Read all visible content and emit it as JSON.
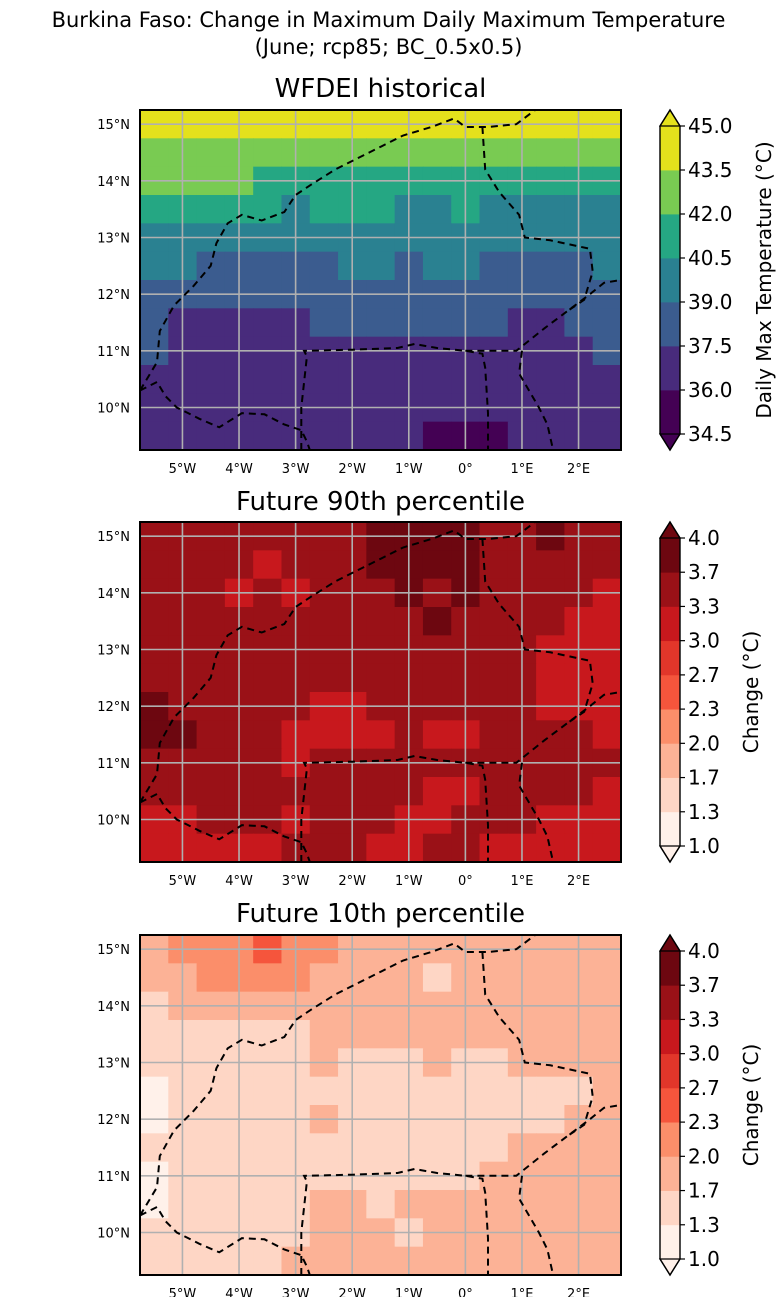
{
  "figure": {
    "title_line1": "Burkina Faso: Change in Maximum Daily Maximum Temperature",
    "title_line2": "(June; rcp85; BC_0.5x0.5)"
  },
  "chart_data": [
    {
      "type": "heatmap",
      "title": "WFDEI historical",
      "x_ticks": [
        "5°W",
        "4°W",
        "3°W",
        "2°W",
        "1°W",
        "0°",
        "1°E",
        "2°E"
      ],
      "y_ticks": [
        "15°N",
        "14°N",
        "13°N",
        "12°N",
        "11°N",
        "10°N"
      ],
      "xlim": [
        -5.75,
        2.75
      ],
      "ylim": [
        9.25,
        15.25
      ],
      "grid": true,
      "colorbar": {
        "label": "Daily Max Temperature (°C)",
        "ticks": [
          "34.5",
          "36.0",
          "37.5",
          "39.0",
          "40.5",
          "42.0",
          "43.5",
          "45.0"
        ],
        "colors": [
          "#440154",
          "#46327e",
          "#365c8d",
          "#277f8e",
          "#1fa187",
          "#4ac16d",
          "#a0da39",
          "#fde725"
        ],
        "colors_display": [
          "#440154",
          "#482b7c",
          "#3b5c8f",
          "#2a8191",
          "#25a783",
          "#79cb52",
          "#e4e11c"
        ]
      },
      "rows_lat": [
        15.0,
        14.5,
        14.0,
        13.5,
        13.0,
        12.5,
        12.0,
        11.5,
        11.0,
        10.5,
        10.0,
        9.5
      ],
      "cols_lon": [
        -5.5,
        -5.0,
        -4.5,
        -4.0,
        -3.5,
        -3.0,
        -2.5,
        -2.0,
        -1.5,
        -1.0,
        -0.5,
        0.0,
        0.5,
        1.0,
        1.5,
        2.0,
        2.5
      ],
      "values": [
        [
          44.0,
          44.0,
          44.2,
          44.0,
          44.2,
          44.4,
          44.5,
          44.5,
          44.5,
          44.2,
          44.8,
          44.8,
          44.2,
          44.0,
          44.0,
          43.6,
          43.6
        ],
        [
          43.0,
          43.0,
          42.8,
          43.0,
          42.8,
          42.8,
          43.0,
          43.2,
          43.2,
          43.0,
          43.0,
          42.8,
          42.6,
          42.8,
          42.6,
          42.6,
          42.6
        ],
        [
          42.8,
          42.6,
          42.2,
          42.0,
          41.8,
          41.6,
          41.6,
          41.8,
          41.6,
          41.4,
          41.6,
          41.4,
          41.2,
          41.4,
          41.4,
          41.2,
          41.2
        ],
        [
          41.4,
          41.2,
          40.8,
          40.8,
          40.6,
          40.4,
          40.6,
          40.8,
          40.6,
          40.4,
          40.4,
          40.6,
          40.4,
          40.4,
          40.2,
          40.2,
          40.2
        ],
        [
          40.4,
          40.2,
          39.8,
          39.6,
          39.6,
          39.4,
          39.6,
          39.8,
          39.6,
          39.4,
          39.4,
          39.6,
          39.2,
          39.2,
          39.4,
          39.4,
          39.6
        ],
        [
          39.6,
          39.2,
          38.8,
          38.8,
          38.6,
          38.6,
          38.8,
          39.0,
          39.2,
          38.8,
          39.0,
          39.2,
          38.8,
          38.8,
          38.6,
          38.8,
          39.0
        ],
        [
          38.6,
          38.4,
          38.2,
          38.0,
          38.0,
          37.8,
          38.0,
          38.2,
          38.2,
          38.2,
          38.4,
          38.6,
          38.4,
          38.2,
          38.0,
          38.2,
          38.6
        ],
        [
          37.6,
          37.0,
          36.6,
          36.6,
          36.8,
          37.0,
          37.6,
          37.6,
          37.8,
          37.8,
          37.8,
          38.0,
          37.6,
          37.4,
          37.0,
          37.6,
          37.8
        ],
        [
          37.6,
          36.6,
          36.2,
          36.4,
          36.8,
          36.6,
          36.6,
          36.8,
          37.4,
          37.4,
          37.2,
          36.8,
          36.8,
          36.6,
          36.6,
          37.0,
          37.6
        ],
        [
          36.8,
          36.6,
          36.2,
          36.4,
          36.6,
          36.4,
          36.4,
          36.8,
          36.8,
          36.8,
          36.6,
          36.2,
          36.4,
          36.4,
          36.6,
          36.8,
          36.8
        ],
        [
          36.8,
          36.6,
          36.4,
          36.4,
          36.4,
          36.6,
          36.6,
          36.8,
          36.6,
          36.4,
          36.2,
          36.0,
          36.2,
          36.6,
          36.8,
          36.8,
          36.8
        ],
        [
          37.4,
          37.0,
          36.8,
          36.6,
          36.4,
          36.6,
          36.6,
          36.4,
          36.4,
          36.2,
          35.6,
          35.4,
          35.8,
          36.2,
          36.4,
          36.6,
          36.8
        ]
      ]
    },
    {
      "type": "heatmap",
      "title": "Future 90th percentile",
      "x_ticks": [
        "5°W",
        "4°W",
        "3°W",
        "2°W",
        "1°W",
        "0°",
        "1°E",
        "2°E"
      ],
      "y_ticks": [
        "15°N",
        "14°N",
        "13°N",
        "12°N",
        "11°N",
        "10°N"
      ],
      "xlim": [
        -5.75,
        2.75
      ],
      "ylim": [
        9.25,
        15.25
      ],
      "grid": true,
      "colorbar": {
        "label": "Change (°C)",
        "ticks": [
          "1.0",
          "1.3",
          "1.7",
          "2.0",
          "2.3",
          "2.7",
          "3.0",
          "3.3",
          "3.7",
          "4.0"
        ],
        "colors": [
          "#fff5f0",
          "#fee0d2",
          "#fcbba1",
          "#fc9272",
          "#fb6a4a",
          "#ef3b2c",
          "#cb181d",
          "#a50f15",
          "#67000d"
        ],
        "colors_display": [
          "#fff1ea",
          "#fed6c5",
          "#fcb296",
          "#fb8e6a",
          "#f5553c",
          "#e2362a",
          "#c8181d",
          "#9a1117",
          "#6d0710"
        ]
      },
      "rows_lat": [
        15.0,
        14.5,
        14.0,
        13.5,
        13.0,
        12.5,
        12.0,
        11.5,
        11.0,
        10.5,
        10.0,
        9.5
      ],
      "cols_lon": [
        -5.5,
        -5.0,
        -4.5,
        -4.0,
        -3.5,
        -3.0,
        -2.5,
        -2.0,
        -1.5,
        -1.0,
        -0.5,
        0.0,
        0.5,
        1.0,
        1.5,
        2.0,
        2.5
      ],
      "values": [
        [
          3.5,
          3.5,
          3.5,
          3.4,
          3.5,
          3.5,
          3.5,
          3.6,
          3.7,
          3.7,
          3.7,
          3.7,
          3.6,
          3.6,
          3.8,
          3.6,
          3.5
        ],
        [
          3.5,
          3.6,
          3.5,
          3.4,
          3.2,
          3.3,
          3.5,
          3.5,
          3.7,
          3.7,
          3.7,
          3.7,
          3.6,
          3.5,
          3.6,
          3.5,
          3.4
        ],
        [
          3.5,
          3.5,
          3.5,
          3.2,
          3.5,
          3.2,
          3.4,
          3.5,
          3.6,
          3.7,
          3.6,
          3.7,
          3.6,
          3.5,
          3.3,
          3.3,
          3.2
        ],
        [
          3.5,
          3.5,
          3.5,
          3.5,
          3.5,
          3.4,
          3.6,
          3.5,
          3.5,
          3.5,
          3.7,
          3.6,
          3.6,
          3.5,
          3.3,
          3.2,
          3.2
        ],
        [
          3.5,
          3.4,
          3.5,
          3.5,
          3.4,
          3.5,
          3.4,
          3.5,
          3.4,
          3.5,
          3.4,
          3.5,
          3.5,
          3.4,
          3.2,
          3.2,
          3.2
        ],
        [
          3.6,
          3.5,
          3.5,
          3.5,
          3.5,
          3.5,
          3.4,
          3.4,
          3.4,
          3.4,
          3.4,
          3.4,
          3.5,
          3.3,
          3.2,
          3.0,
          3.1
        ],
        [
          3.7,
          3.5,
          3.4,
          3.3,
          3.4,
          3.3,
          3.2,
          3.2,
          3.3,
          3.3,
          3.3,
          3.3,
          3.4,
          3.3,
          3.2,
          3.1,
          3.2
        ],
        [
          3.7,
          3.7,
          3.6,
          3.5,
          3.4,
          3.2,
          3.2,
          3.2,
          3.2,
          3.3,
          3.2,
          3.2,
          3.3,
          3.4,
          3.5,
          3.3,
          3.2
        ],
        [
          3.6,
          3.6,
          3.5,
          3.3,
          3.3,
          3.2,
          3.3,
          3.4,
          3.4,
          3.3,
          3.4,
          3.3,
          3.3,
          3.5,
          3.5,
          3.4,
          3.3
        ],
        [
          3.4,
          3.4,
          3.3,
          3.3,
          3.3,
          3.4,
          3.4,
          3.3,
          3.5,
          3.4,
          3.2,
          3.2,
          3.3,
          3.4,
          3.4,
          3.3,
          3.2
        ],
        [
          3.2,
          3.2,
          3.3,
          3.3,
          3.3,
          3.2,
          3.3,
          3.4,
          3.3,
          3.2,
          3.2,
          3.3,
          3.3,
          3.3,
          3.2,
          3.2,
          3.2
        ],
        [
          3.2,
          3.2,
          3.2,
          3.2,
          3.2,
          3.3,
          3.4,
          3.3,
          3.2,
          3.2,
          3.3,
          3.3,
          3.2,
          3.2,
          3.2,
          3.2,
          3.2
        ]
      ]
    },
    {
      "type": "heatmap",
      "title": "Future 10th percentile",
      "x_ticks": [
        "5°W",
        "4°W",
        "3°W",
        "2°W",
        "1°W",
        "0°",
        "1°E",
        "2°E"
      ],
      "y_ticks": [
        "15°N",
        "14°N",
        "13°N",
        "12°N",
        "11°N",
        "10°N"
      ],
      "xlim": [
        -5.75,
        2.75
      ],
      "ylim": [
        9.25,
        15.25
      ],
      "grid": true,
      "colorbar": {
        "label": "Change (°C)",
        "ticks": [
          "1.0",
          "1.3",
          "1.7",
          "2.0",
          "2.3",
          "2.7",
          "3.0",
          "3.3",
          "3.7",
          "4.0"
        ],
        "colors": [
          "#fff5f0",
          "#fee0d2",
          "#fcbba1",
          "#fc9272",
          "#fb6a4a",
          "#ef3b2c",
          "#cb181d",
          "#a50f15",
          "#67000d"
        ],
        "colors_display": [
          "#fff1ea",
          "#fed6c5",
          "#fcb296",
          "#fb8e6a",
          "#f5553c",
          "#e2362a",
          "#c8181d",
          "#9a1117",
          "#6d0710"
        ]
      },
      "rows_lat": [
        15.0,
        14.5,
        14.0,
        13.5,
        13.0,
        12.5,
        12.0,
        11.5,
        11.0,
        10.5,
        10.0,
        9.5
      ],
      "cols_lon": [
        -5.5,
        -5.0,
        -4.5,
        -4.0,
        -3.5,
        -3.0,
        -2.5,
        -2.0,
        -1.5,
        -1.0,
        -0.5,
        0.0,
        0.5,
        1.0,
        1.5,
        2.0,
        2.5
      ],
      "values": [
        [
          1.8,
          2.0,
          2.1,
          2.2,
          2.3,
          2.2,
          2.0,
          1.9,
          1.9,
          1.9,
          1.8,
          1.8,
          1.9,
          1.9,
          1.9,
          1.9,
          1.9
        ],
        [
          1.8,
          1.9,
          2.1,
          2.2,
          2.2,
          2.0,
          1.9,
          1.9,
          1.9,
          1.8,
          1.6,
          1.8,
          1.9,
          1.9,
          1.9,
          1.9,
          1.9
        ],
        [
          1.6,
          1.7,
          1.8,
          1.9,
          1.8,
          1.7,
          1.7,
          1.8,
          1.8,
          1.8,
          1.9,
          1.9,
          1.8,
          1.8,
          1.9,
          1.9,
          1.9
        ],
        [
          1.4,
          1.5,
          1.6,
          1.6,
          1.6,
          1.6,
          1.7,
          1.8,
          1.7,
          1.7,
          1.8,
          1.8,
          1.8,
          1.8,
          1.8,
          1.9,
          1.8
        ],
        [
          1.3,
          1.4,
          1.5,
          1.6,
          1.5,
          1.6,
          1.7,
          1.6,
          1.6,
          1.6,
          1.7,
          1.6,
          1.6,
          1.7,
          1.8,
          1.8,
          1.7
        ],
        [
          1.2,
          1.3,
          1.4,
          1.5,
          1.5,
          1.6,
          1.5,
          1.4,
          1.4,
          1.5,
          1.6,
          1.5,
          1.5,
          1.5,
          1.4,
          1.6,
          1.7
        ],
        [
          1.2,
          1.3,
          1.5,
          1.6,
          1.6,
          1.5,
          1.8,
          1.6,
          1.5,
          1.5,
          1.6,
          1.6,
          1.5,
          1.6,
          1.6,
          1.7,
          1.7
        ],
        [
          1.3,
          1.4,
          1.5,
          1.5,
          1.5,
          1.6,
          1.5,
          1.5,
          1.5,
          1.6,
          1.5,
          1.6,
          1.6,
          1.7,
          1.7,
          1.7,
          1.8
        ],
        [
          1.2,
          1.3,
          1.4,
          1.5,
          1.5,
          1.5,
          1.5,
          1.6,
          1.6,
          1.6,
          1.6,
          1.6,
          1.7,
          1.7,
          1.8,
          1.8,
          1.8
        ],
        [
          1.2,
          1.3,
          1.4,
          1.5,
          1.5,
          1.5,
          1.8,
          1.7,
          1.6,
          1.7,
          1.7,
          1.7,
          1.8,
          1.8,
          1.9,
          1.8,
          1.8
        ],
        [
          1.3,
          1.3,
          1.4,
          1.5,
          1.6,
          1.6,
          1.7,
          1.7,
          1.7,
          1.6,
          1.7,
          1.8,
          1.8,
          1.8,
          1.8,
          1.8,
          1.8
        ],
        [
          1.5,
          1.5,
          1.6,
          1.6,
          1.6,
          1.7,
          1.7,
          1.7,
          1.7,
          1.7,
          1.7,
          1.8,
          1.8,
          1.8,
          1.8,
          1.8,
          1.8
        ]
      ]
    }
  ]
}
